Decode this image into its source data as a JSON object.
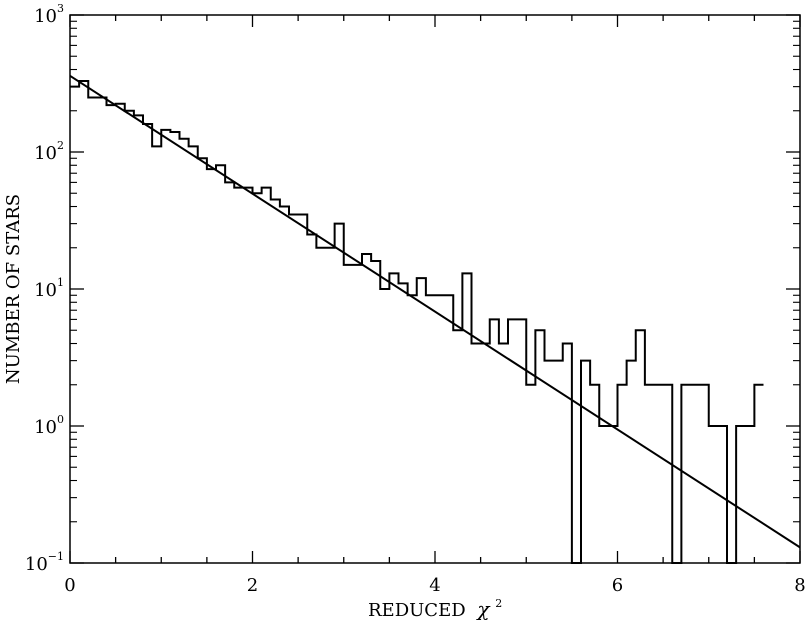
{
  "chart_data": {
    "type": "histogram-line",
    "xlabel_main": "REDUCED",
    "xlabel_symbol": "χ",
    "xlabel_power": "2",
    "ylabel": "NUMBER OF STARS",
    "xlim": [
      0,
      8
    ],
    "ylim_log10": [
      -1,
      3
    ],
    "y_scale": "log",
    "x_ticks": [
      "0",
      "2",
      "4",
      "6",
      "8"
    ],
    "x_tick_values": [
      0,
      2,
      4,
      6,
      8
    ],
    "y_ticks": [
      {
        "base": "10",
        "exp": "3",
        "value": 1000
      },
      {
        "base": "10",
        "exp": "2",
        "value": 100
      },
      {
        "base": "10",
        "exp": "1",
        "value": 10
      },
      {
        "base": "10",
        "exp": "0",
        "value": 1
      },
      {
        "base": "10",
        "exp": "−1",
        "value": 0.1
      }
    ],
    "histogram": {
      "bin_width": 0.1,
      "bin_start": 0,
      "counts": [
        300,
        330,
        250,
        250,
        220,
        225,
        200,
        185,
        160,
        110,
        145,
        140,
        125,
        110,
        90,
        75,
        80,
        60,
        55,
        55,
        50,
        55,
        45,
        40,
        35,
        35,
        25,
        20,
        20,
        30,
        15,
        15,
        18,
        16,
        10,
        13,
        11,
        9,
        12,
        9,
        9,
        9,
        5,
        13,
        4,
        4,
        6,
        4,
        6,
        6,
        2,
        5,
        3,
        3,
        4,
        0,
        3,
        2,
        1,
        1,
        2,
        3,
        5,
        2,
        2,
        2,
        0,
        2,
        2,
        2,
        1,
        1,
        0,
        1,
        1,
        2
      ]
    },
    "fit_line": {
      "x": [
        0,
        8
      ],
      "y": [
        360,
        0.13
      ]
    },
    "grid": false,
    "legend": "none"
  }
}
